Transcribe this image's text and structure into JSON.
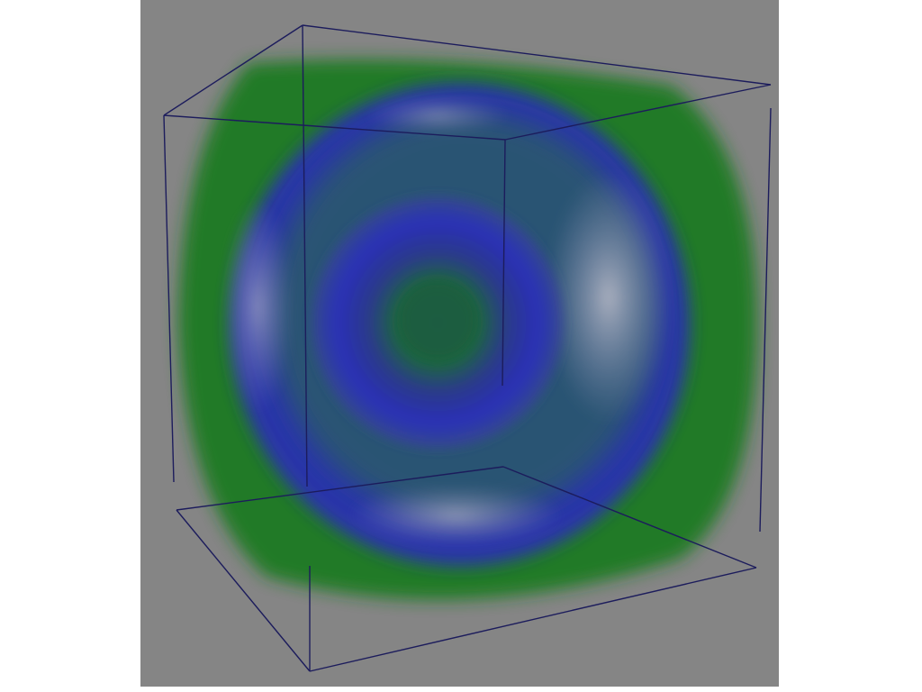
{
  "colors": {
    "page_background": "#ffffff",
    "viewport_background": "#858585",
    "outer_shell": "#1f7a1f",
    "middle_shell": "#2a2fb0",
    "inner_shell": "#2430a8",
    "core": "#1f5f3a",
    "highlight": "#b4b4c8",
    "bounding_box_lines": "#1a1a5a"
  },
  "icons": {
    "render": "volume-rendering",
    "outline": "bounding-box-wireframe"
  }
}
